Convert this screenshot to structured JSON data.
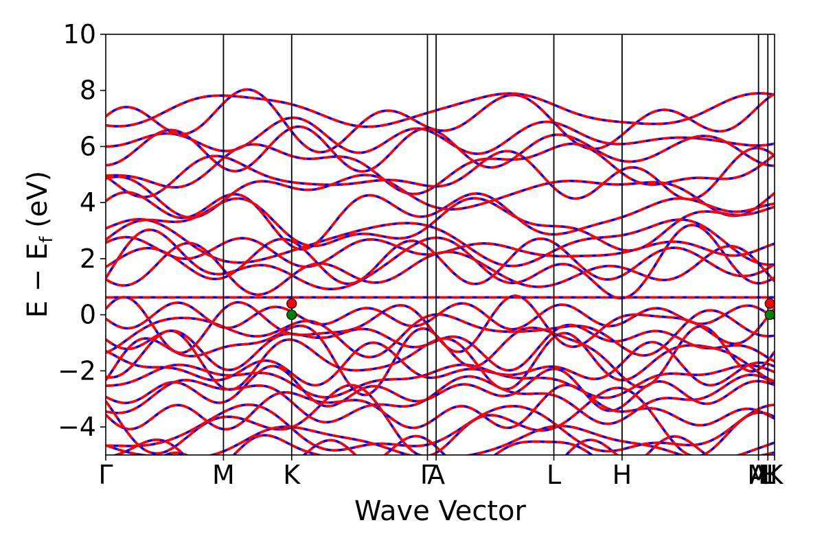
{
  "chart_data": {
    "type": "line",
    "xlabel": "Wave Vector",
    "ylabel": "E − E_f (eV)",
    "ylabel_parts": {
      "main": "E − E",
      "sub": "f",
      "unit": " (eV)"
    },
    "ylim": [
      -5,
      10
    ],
    "yticks": [
      -4,
      -2,
      0,
      2,
      4,
      6,
      8,
      10
    ],
    "ytick_labels": [
      "−4",
      "−2",
      "0",
      "2",
      "4",
      "6",
      "8",
      "10"
    ],
    "k_path": [
      "Γ",
      "M",
      "K",
      "Γ",
      "A",
      "L",
      "H",
      "A",
      "M",
      "L",
      "H",
      "K"
    ],
    "x_ticks": [
      {
        "label": "Γ",
        "k": 0.0
      },
      {
        "label": "M",
        "k": 0.176
      },
      {
        "label": "K",
        "k": 0.278
      },
      {
        "label": "Γ",
        "k": 0.481
      },
      {
        "label": "A",
        "k": 0.494
      },
      {
        "label": "L",
        "k": 0.67
      },
      {
        "label": "H",
        "k": 0.772
      },
      {
        "label": "A",
        "k": 0.976
      },
      {
        "label": "M",
        "k": 0.976
      },
      {
        "label": "L",
        "k": 0.99
      },
      {
        "label": "H",
        "k": 0.99
      },
      {
        "label": "K",
        "k": 1.0
      }
    ],
    "grid": false,
    "series": [
      {
        "style": "solid",
        "color": "#0000ff"
      },
      {
        "style": "dashed",
        "color": "#ff0000"
      }
    ],
    "bands_valence": [
      -0.05,
      -0.35,
      -0.6,
      -1.0,
      -1.3,
      -1.6,
      -1.9,
      -2.3,
      -2.7,
      -3.0,
      -3.4,
      -3.8,
      -4.2,
      -4.6
    ],
    "bands_conduction": [
      1.55,
      1.7,
      1.9,
      2.3,
      2.6,
      3.2,
      3.6,
      4.4,
      4.9,
      5.3,
      5.9,
      6.3,
      6.9,
      7.3
    ],
    "flat_band": 0.62,
    "markers": [
      {
        "k": 0.278,
        "E": 0.4,
        "color": "#ff0000"
      },
      {
        "k": 0.278,
        "E": 0.0,
        "color": "#008000"
      },
      {
        "k": 0.993,
        "E": 0.4,
        "color": "#ff0000"
      },
      {
        "k": 0.993,
        "E": 0.0,
        "color": "#008000"
      }
    ],
    "colors": {
      "dft": "#0000ff",
      "model": "#ff0000",
      "vbm": "#008000",
      "cbm": "#ff0000"
    }
  }
}
